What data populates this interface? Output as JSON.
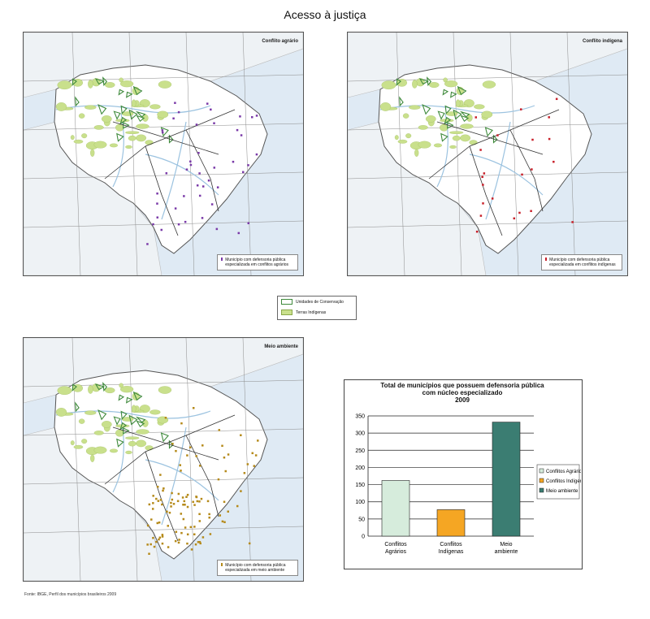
{
  "page": {
    "title": "Acesso à justiça",
    "source": "Fonte: IBGE, Perfil dos municípios brasileiros 2009"
  },
  "colors": {
    "ocean": "#dfeaf4",
    "land": "#ffffff",
    "neighbor": "#eef2f5",
    "river": "#9cc3e0",
    "road": "#333333",
    "conservation_units": "#3f8a3c",
    "indigenous_lands": "#c9e08c",
    "agrarian_marker": "#7a3aa8",
    "indigenous_marker": "#c8202a",
    "environment_marker": "#b58a1a"
  },
  "maps": [
    {
      "id": "agrarian",
      "label": "Conflito agrário",
      "legend": "Município com defensoria pública especializada em conflitos agrários",
      "marker_color": "#7a3aa8"
    },
    {
      "id": "indigenous",
      "label": "Conflito indígena",
      "legend": "Município com defensoria pública especializada em conflitos indígenas",
      "marker_color": "#c8202a"
    },
    {
      "id": "environment",
      "label": "Meio ambiente",
      "legend": "Município com defensoria pública especializada em meio ambiente",
      "marker_color": "#b58a1a"
    }
  ],
  "shared_legend": {
    "items": [
      {
        "label": "Unidades de Conservação",
        "style": "outline",
        "color": "#3f8a3c"
      },
      {
        "label": "Terras Indígenas",
        "style": "fill",
        "color": "#c9e08c"
      }
    ]
  },
  "chart_data": {
    "type": "bar",
    "title": "Total de municípios que possuem defensoria pública com núcleo especializado",
    "subtitle": "2009",
    "categories": [
      "Conflitos Agrários",
      "Conflitos Indígenas",
      "Meio ambiente"
    ],
    "values": [
      162,
      77,
      332
    ],
    "colors": [
      "#d6ecdc",
      "#f5a623",
      "#3b7d72"
    ],
    "ylim": [
      0,
      350
    ],
    "yticks": [
      0,
      50,
      100,
      150,
      200,
      250,
      300,
      350
    ],
    "legend_position": "right",
    "grid": true,
    "xlabel": "",
    "ylabel": ""
  }
}
